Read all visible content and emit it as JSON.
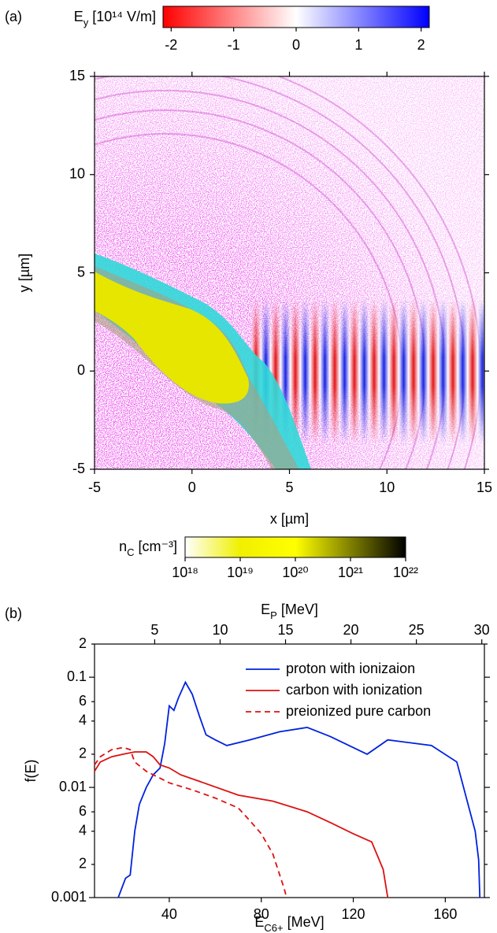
{
  "chart_data": [
    {
      "type": "image",
      "panel_label": "(a)",
      "xlabel": [
        "x [µm]"
      ],
      "ylabel": [
        "y [µm]"
      ],
      "xlim": [
        -5,
        15
      ],
      "ylim": [
        -5,
        15
      ],
      "xticks": [
        -5,
        0,
        5,
        10,
        15
      ],
      "yticks": [
        -5,
        0,
        5,
        10,
        15
      ],
      "colorbar_top": {
        "label": [
          "E",
          "y",
          " [10¹⁴ V/m]"
        ],
        "lim": [
          -2.13,
          2.13
        ],
        "ticks": [
          -2,
          -1,
          0,
          1,
          2
        ],
        "colors": [
          "#ff0000",
          "#ffffff",
          "#0000ff"
        ]
      },
      "colorbar_bottom": {
        "label": [
          "n",
          "C",
          " [cm⁻³]"
        ],
        "lim": [
          1e+18,
          1e+22
        ],
        "log": true,
        "ticks": [
          {
            "value": 1e+18,
            "label": "10¹⁸"
          },
          {
            "value": 1e+19,
            "label": "10¹⁹"
          },
          {
            "value": 1e+20,
            "label": "10²⁰"
          },
          {
            "value": 1e+21,
            "label": "10²¹"
          },
          {
            "value": 1e+22,
            "label": "10²²"
          }
        ],
        "colors": [
          "#ffffff",
          "#f0f000",
          "#ffff00",
          "#808000",
          "#000000"
        ]
      }
    },
    {
      "type": "line",
      "panel_label": "(b)",
      "xlabel": [
        "E",
        "C6+",
        " [MeV]"
      ],
      "x2label": [
        "E",
        "P",
        " [MeV]"
      ],
      "ylabel": [
        "f(E)"
      ],
      "xlim": [
        7.5,
        177
      ],
      "xticks": [
        40,
        80,
        120,
        160
      ],
      "x2lim": [
        0.4,
        30.2
      ],
      "x2ticks": [
        5,
        10,
        15,
        20,
        25,
        30
      ],
      "ylim": [
        0.001,
        0.2
      ],
      "log_y": true,
      "yticks": [
        0.001,
        {
          "value": 0.002,
          "label": "2"
        },
        {
          "value": 0.004,
          "label": "4"
        },
        {
          "value": 0.006,
          "label": "6"
        },
        0.01,
        {
          "value": 0.02,
          "label": "2"
        },
        {
          "value": 0.04,
          "label": "4"
        },
        {
          "value": 0.06,
          "label": "6"
        },
        0.1,
        {
          "value": 0.2,
          "label": "2"
        }
      ],
      "legend": "upper right",
      "series": [
        {
          "name": "proton with ionizaion",
          "color": "#0022dd",
          "linestyle": "solid",
          "x": [
            17.8,
            21,
            23,
            25,
            27,
            30,
            33,
            36,
            38,
            40,
            42,
            44,
            47,
            50,
            53,
            56,
            60,
            65,
            75,
            88,
            100,
            110,
            126,
            135,
            154,
            165,
            173,
            174.5,
            175
          ],
          "values": [
            0.001,
            0.0015,
            0.0016,
            0.004,
            0.007,
            0.01,
            0.013,
            0.015,
            0.025,
            0.055,
            0.05,
            0.065,
            0.09,
            0.07,
            0.045,
            0.03,
            0.027,
            0.024,
            0.027,
            0.032,
            0.035,
            0.029,
            0.02,
            0.027,
            0.024,
            0.017,
            0.004,
            0.0022,
            0.001
          ]
        },
        {
          "name": "carbon with ionization",
          "color": "#dd1111",
          "linestyle": "solid",
          "x": [
            7.5,
            10,
            15,
            20,
            25,
            30,
            33,
            36,
            40,
            45,
            55,
            70,
            85,
            100,
            110,
            120,
            128,
            133,
            135
          ],
          "values": [
            0.014,
            0.017,
            0.019,
            0.02,
            0.021,
            0.021,
            0.019,
            0.016,
            0.015,
            0.013,
            0.011,
            0.0085,
            0.0075,
            0.006,
            0.0048,
            0.0038,
            0.0032,
            0.0018,
            0.001
          ]
        },
        {
          "name": "preionized pure carbon",
          "color": "#dd1111",
          "linestyle": "dashed",
          "x": [
            7.5,
            10,
            15,
            20,
            23,
            25,
            30,
            40,
            50,
            60,
            70,
            75,
            80,
            85,
            90,
            91
          ],
          "values": [
            0.016,
            0.019,
            0.022,
            0.023,
            0.022,
            0.017,
            0.014,
            0.011,
            0.0095,
            0.008,
            0.0065,
            0.005,
            0.0038,
            0.0025,
            0.0012,
            0.001
          ]
        }
      ]
    }
  ]
}
